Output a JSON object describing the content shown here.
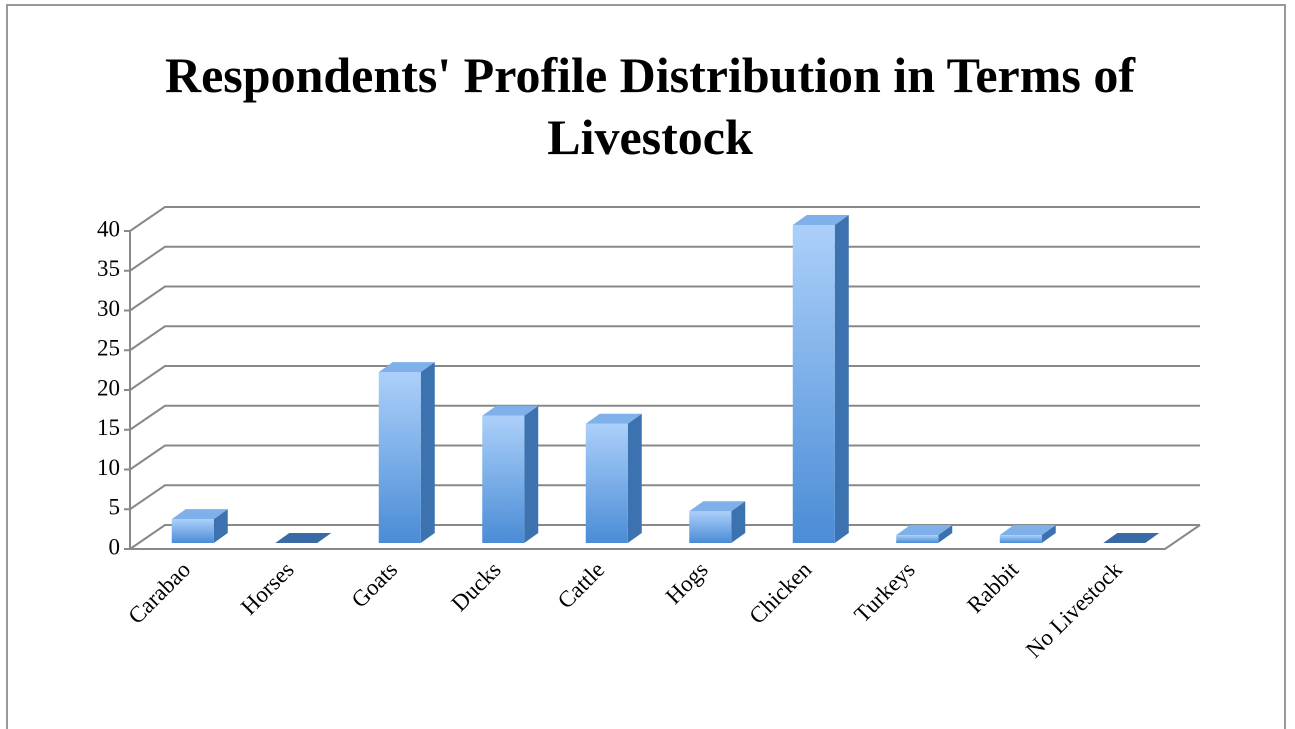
{
  "chart_data": {
    "type": "bar3d",
    "title": "Respondents' Profile Distribution in Terms of Livestock",
    "categories": [
      "Carabao",
      "Horses",
      "Goats",
      "Ducks",
      "Cattle",
      "Hogs",
      "Chicken",
      "Turkeys",
      "Rabbit",
      "No Livestock"
    ],
    "values": [
      3,
      0,
      21.5,
      16,
      15,
      4,
      40,
      1,
      1,
      0
    ],
    "color": "#5b9be0",
    "ylim": [
      0,
      40
    ],
    "yticks": [
      0,
      5,
      10,
      15,
      20,
      25,
      30,
      35,
      40
    ],
    "grid": true
  }
}
